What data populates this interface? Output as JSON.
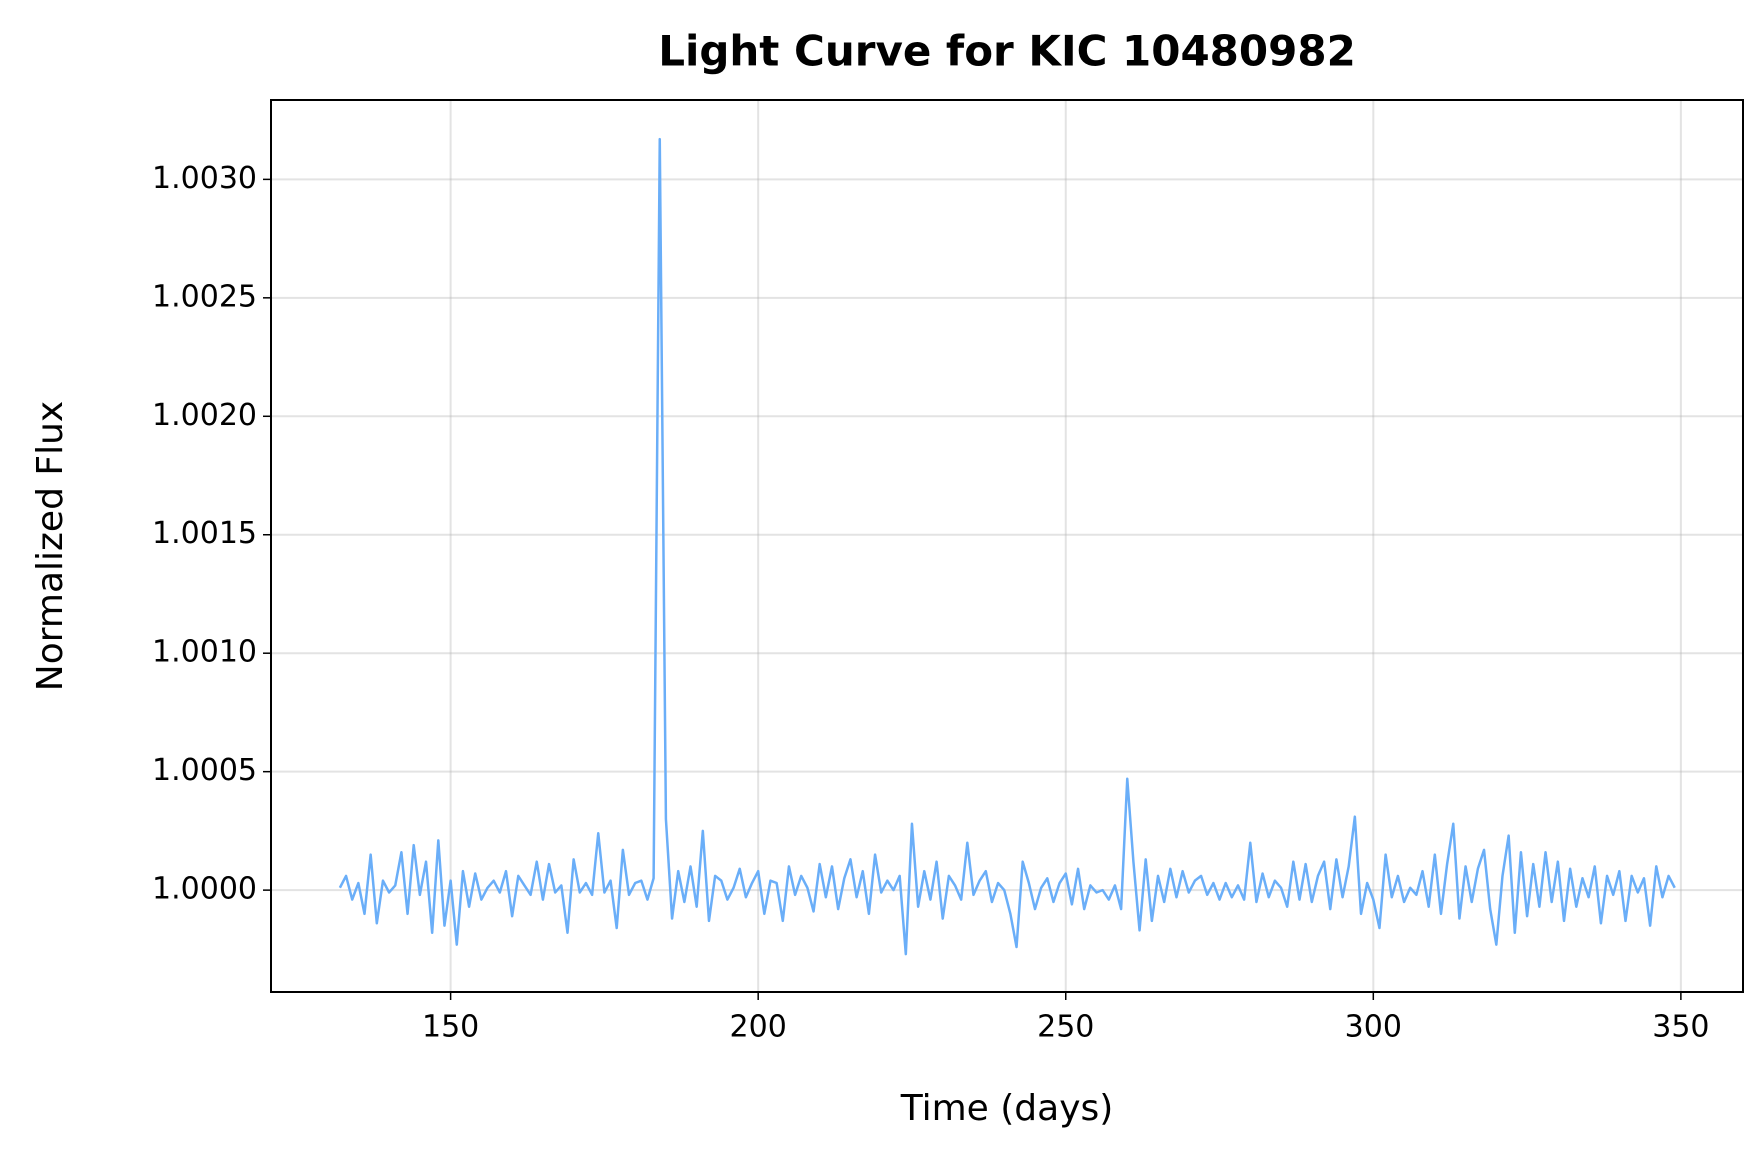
{
  "chart_data": {
    "type": "line",
    "title": "Light Curve for KIC 10480982",
    "xlabel": "Time (days)",
    "ylabel": "Normalized Flux",
    "color": "#6aaef8",
    "grid": true,
    "xlim": [
      120.8,
      360.1
    ],
    "ylim": [
      0.99957,
      1.003335
    ],
    "xticks": [
      150,
      200,
      250,
      300,
      350
    ],
    "yticks": [
      {
        "value": 1.0,
        "label": "1.0000"
      },
      {
        "value": 1.0005,
        "label": "1.0005"
      },
      {
        "value": 1.001,
        "label": "1.0010"
      },
      {
        "value": 1.0015,
        "label": "1.0015"
      },
      {
        "value": 1.002,
        "label": "1.0020"
      },
      {
        "value": 1.0025,
        "label": "1.0025"
      },
      {
        "value": 1.003,
        "label": "1.0030"
      }
    ],
    "x": [
      132,
      133,
      134,
      135,
      136,
      137,
      138,
      139,
      140,
      141,
      142,
      143,
      144,
      145,
      146,
      147,
      148,
      149,
      150,
      151,
      152,
      153,
      154,
      155,
      156,
      157,
      158,
      159,
      160,
      161,
      162,
      163,
      164,
      165,
      166,
      167,
      168,
      169,
      170,
      171,
      172,
      173,
      174,
      175,
      176,
      177,
      178,
      179,
      180,
      181,
      182,
      183,
      184,
      185,
      186,
      187,
      188,
      189,
      190,
      191,
      192,
      193,
      194,
      195,
      196,
      197,
      198,
      199,
      200,
      201,
      202,
      203,
      204,
      205,
      206,
      207,
      208,
      209,
      210,
      211,
      212,
      213,
      214,
      215,
      216,
      217,
      218,
      219,
      220,
      221,
      222,
      223,
      224,
      225,
      226,
      227,
      228,
      229,
      230,
      231,
      232,
      233,
      234,
      235,
      236,
      237,
      238,
      239,
      240,
      241,
      242,
      243,
      244,
      245,
      246,
      247,
      248,
      249,
      250,
      251,
      252,
      253,
      254,
      255,
      256,
      257,
      258,
      259,
      260,
      261,
      262,
      263,
      264,
      265,
      266,
      267,
      268,
      269,
      270,
      271,
      272,
      273,
      274,
      275,
      276,
      277,
      278,
      279,
      280,
      281,
      282,
      283,
      284,
      285,
      286,
      287,
      288,
      289,
      290,
      291,
      292,
      293,
      294,
      295,
      296,
      297,
      298,
      299,
      300,
      301,
      302,
      303,
      304,
      305,
      306,
      307,
      308,
      309,
      310,
      311,
      312,
      313,
      314,
      315,
      316,
      317,
      318,
      319,
      320,
      321,
      322,
      323,
      324,
      325,
      326,
      327,
      328,
      329,
      330,
      331,
      332,
      333,
      334,
      335,
      336,
      337,
      338,
      339,
      340,
      341,
      342,
      343,
      344,
      345,
      346,
      347,
      348,
      349
    ],
    "values": [
      1.00001,
      1.00006,
      0.99996,
      1.00003,
      0.9999,
      1.00015,
      0.99986,
      1.00004,
      0.99999,
      1.00002,
      1.00016,
      0.9999,
      1.00019,
      0.99998,
      1.00012,
      0.99982,
      1.00021,
      0.99985,
      1.00004,
      0.99977,
      1.00008,
      0.99993,
      1.00007,
      0.99996,
      1.00001,
      1.00004,
      0.99999,
      1.00008,
      0.99989,
      1.00006,
      1.00002,
      0.99998,
      1.00012,
      0.99996,
      1.00011,
      0.99999,
      1.00002,
      0.99982,
      1.00013,
      0.99999,
      1.00003,
      0.99998,
      1.00024,
      0.99999,
      1.00004,
      0.99984,
      1.00017,
      0.99998,
      1.00003,
      1.00004,
      0.99996,
      1.00005,
      1.00317,
      1.0003,
      0.99988,
      1.00008,
      0.99995,
      1.0001,
      0.99993,
      1.00025,
      0.99987,
      1.00006,
      1.00004,
      0.99996,
      1.00001,
      1.00009,
      0.99997,
      1.00003,
      1.00008,
      0.9999,
      1.00004,
      1.00003,
      0.99987,
      1.0001,
      0.99998,
      1.00006,
      1.00001,
      0.99991,
      1.00011,
      0.99997,
      1.0001,
      0.99992,
      1.00005,
      1.00013,
      0.99997,
      1.00008,
      0.9999,
      1.00015,
      0.99999,
      1.00004,
      1.0,
      1.00006,
      0.99973,
      1.00028,
      0.99993,
      1.00008,
      0.99996,
      1.00012,
      0.99988,
      1.00006,
      1.00002,
      0.99996,
      1.0002,
      0.99998,
      1.00004,
      1.00008,
      0.99995,
      1.00003,
      1.0,
      0.9999,
      0.99976,
      1.00012,
      1.00003,
      0.99992,
      1.00001,
      1.00005,
      0.99995,
      1.00003,
      1.00007,
      0.99994,
      1.00009,
      0.99992,
      1.00002,
      0.99999,
      1.0,
      0.99996,
      1.00002,
      0.99992,
      1.00047,
      1.00012,
      0.99983,
      1.00013,
      0.99987,
      1.00006,
      0.99995,
      1.00009,
      0.99997,
      1.00008,
      0.99999,
      1.00004,
      1.00006,
      0.99998,
      1.00003,
      0.99996,
      1.00003,
      0.99997,
      1.00002,
      0.99996,
      1.0002,
      0.99995,
      1.00007,
      0.99997,
      1.00004,
      1.00001,
      0.99993,
      1.00012,
      0.99996,
      1.00011,
      0.99995,
      1.00006,
      1.00012,
      0.99992,
      1.00013,
      0.99997,
      1.0001,
      1.00031,
      0.9999,
      1.00003,
      0.99996,
      0.99984,
      1.00015,
      0.99997,
      1.00006,
      0.99995,
      1.00001,
      0.99998,
      1.00008,
      0.99993,
      1.00015,
      0.9999,
      1.00011,
      1.00028,
      0.99988,
      1.0001,
      0.99995,
      1.00009,
      1.00017,
      0.99992,
      0.99977,
      1.00006,
      1.00023,
      0.99982,
      1.00016,
      0.99989,
      1.00011,
      0.99993,
      1.00016,
      0.99995,
      1.00012,
      0.99987,
      1.00009,
      0.99993,
      1.00005,
      0.99997,
      1.0001,
      0.99986,
      1.00006,
      0.99998,
      1.00008,
      0.99987,
      1.00006,
      0.99999,
      1.00005,
      0.99985,
      1.0001,
      0.99997,
      1.00006,
      1.00001
    ]
  }
}
